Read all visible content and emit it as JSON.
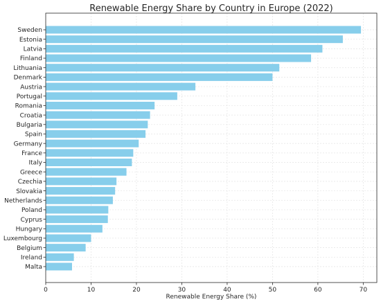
{
  "chart_data": {
    "type": "bar",
    "orientation": "horizontal",
    "title": "Renewable Energy Share by Country in Europe (2022)",
    "xlabel": "Renewable Energy Share (%)",
    "ylabel": "",
    "xlim": [
      0,
      73
    ],
    "xticks": [
      0,
      10,
      20,
      30,
      40,
      50,
      60,
      70
    ],
    "grid": true,
    "bar_color": "#87ceeb",
    "categories": [
      "Sweden",
      "Estonia",
      "Latvia",
      "Finland",
      "Lithuania",
      "Denmark",
      "Austria",
      "Portugal",
      "Romania",
      "Croatia",
      "Bulgaria",
      "Spain",
      "Germany",
      "France",
      "Italy",
      "Greece",
      "Czechia",
      "Slovakia",
      "Netherlands",
      "Poland",
      "Cyprus",
      "Hungary",
      "Luxembourg",
      "Belgium",
      "Ireland",
      "Malta"
    ],
    "values": [
      69.5,
      65.5,
      61.0,
      58.5,
      51.5,
      50.0,
      33.0,
      29.0,
      24.0,
      23.0,
      22.5,
      22.0,
      20.5,
      19.3,
      19.0,
      17.8,
      15.6,
      15.3,
      14.8,
      13.8,
      13.7,
      12.5,
      10.0,
      8.8,
      6.2,
      5.8
    ]
  }
}
